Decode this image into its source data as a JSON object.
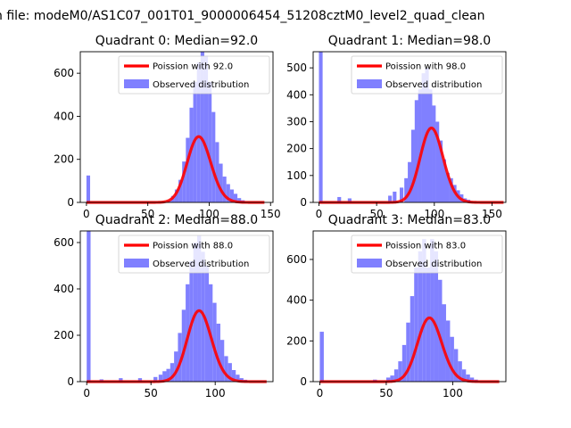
{
  "figure": {
    "suptitle": "n file: modeM0/AS1C07_001T01_9000006454_51208cztM0_level2_quad_clean",
    "colors": {
      "poisson": "#ff0000",
      "histogram": "#8080ff",
      "axes": "#000000"
    }
  },
  "chart_data": [
    {
      "type": "bar",
      "title": "Quadrant 0: Median=92.0",
      "xlim": [
        -5,
        152
      ],
      "ylim": [
        0,
        700
      ],
      "xticks": [
        0,
        50,
        100,
        150
      ],
      "yticks": [
        0,
        200,
        400,
        600
      ],
      "bin_width": 3,
      "hist_x": [
        0,
        66,
        69,
        72,
        75,
        78,
        81,
        84,
        87,
        90,
        93,
        96,
        99,
        102,
        105,
        108,
        111,
        114,
        117,
        120,
        123,
        126
      ],
      "hist_y": [
        125,
        10,
        30,
        60,
        105,
        190,
        300,
        440,
        560,
        650,
        700,
        680,
        560,
        420,
        280,
        180,
        120,
        85,
        60,
        40,
        20,
        10
      ],
      "legend": [
        "Poission with 92.0",
        "Observed distribution"
      ],
      "poisson_mean": 92.0,
      "poisson_scale": 7350,
      "poisson_xrange": [
        0,
        145
      ]
    },
    {
      "type": "bar",
      "title": "Quadrant 1: Median=98.0",
      "xlim": [
        -5,
        162
      ],
      "ylim": [
        0,
        560
      ],
      "xticks": [
        0,
        50,
        100,
        150
      ],
      "yticks": [
        0,
        100,
        200,
        300,
        400,
        500
      ],
      "bin_width": 3.2,
      "hist_x": [
        0,
        16,
        25,
        60,
        64,
        70,
        74,
        77,
        80,
        83,
        86,
        89,
        92,
        95,
        98,
        101,
        104,
        107,
        110,
        113,
        116,
        119,
        122,
        125,
        128
      ],
      "hist_y": [
        560,
        20,
        15,
        25,
        40,
        55,
        90,
        150,
        270,
        380,
        420,
        480,
        500,
        420,
        360,
        300,
        230,
        160,
        110,
        90,
        65,
        45,
        30,
        15,
        10
      ],
      "legend": [
        "Poission with 98.0",
        "Observed distribution"
      ],
      "poisson_mean": 98.0,
      "poisson_scale": 6860,
      "poisson_xrange": [
        0,
        160
      ]
    },
    {
      "type": "bar",
      "title": "Quadrant 2: Median=88.0",
      "xlim": [
        -5,
        145
      ],
      "ylim": [
        0,
        650
      ],
      "xticks": [
        0,
        50,
        100
      ],
      "yticks": [
        0,
        200,
        400,
        600
      ],
      "bin_width": 3,
      "hist_x": [
        0,
        10,
        25,
        40,
        52,
        56,
        59,
        62,
        65,
        68,
        71,
        74,
        77,
        80,
        83,
        86,
        89,
        92,
        95,
        98,
        101,
        104,
        107,
        110,
        113,
        116,
        119,
        122
      ],
      "hist_y": [
        650,
        10,
        15,
        15,
        20,
        30,
        45,
        55,
        80,
        130,
        210,
        310,
        420,
        520,
        600,
        630,
        560,
        500,
        420,
        340,
        250,
        180,
        110,
        80,
        50,
        30,
        15,
        8
      ],
      "legend": [
        "Poission with 88.0",
        "Observed distribution"
      ],
      "poisson_mean": 88.0,
      "poisson_scale": 7200,
      "poisson_xrange": [
        0,
        140
      ]
    },
    {
      "type": "bar",
      "title": "Quadrant 3: Median=83.0",
      "xlim": [
        -5,
        140
      ],
      "ylim": [
        0,
        740
      ],
      "xticks": [
        0,
        50,
        100
      ],
      "yticks": [
        0,
        200,
        400,
        600
      ],
      "bin_width": 3,
      "hist_x": [
        0,
        40,
        50,
        53,
        56,
        59,
        62,
        65,
        68,
        71,
        74,
        77,
        80,
        83,
        86,
        89,
        92,
        95,
        98,
        101,
        104,
        107,
        110,
        113,
        116
      ],
      "hist_y": [
        245,
        10,
        20,
        30,
        60,
        100,
        180,
        290,
        420,
        560,
        640,
        700,
        560,
        700,
        640,
        500,
        380,
        300,
        220,
        160,
        100,
        60,
        35,
        20,
        10
      ],
      "legend": [
        "Poission with 83.0",
        "Observed distribution"
      ],
      "poisson_mean": 83.0,
      "poisson_scale": 7150,
      "poisson_xrange": [
        0,
        135
      ]
    }
  ]
}
